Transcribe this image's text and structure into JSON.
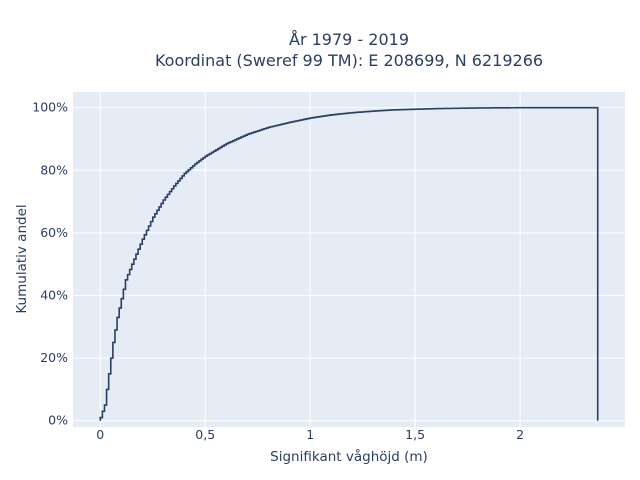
{
  "chart_data": {
    "type": "line",
    "subtype": "cumulative-step",
    "title_line1": "År 1979 - 2019",
    "title_line2": "Koordinat (Sweref 99 TM): E 208699, N 6219266",
    "xlabel": "Signifikant våghöjd (m)",
    "ylabel": "Kumulativ andel",
    "xlim": [
      -0.13,
      2.5
    ],
    "ylim": [
      -0.02,
      1.05
    ],
    "x_ticks": [
      0,
      0.5,
      1,
      1.5,
      2
    ],
    "x_tick_labels": [
      "0",
      "0,5",
      "1",
      "1,5",
      "2"
    ],
    "y_ticks": [
      0,
      0.2,
      0.4,
      0.6,
      0.8,
      1.0
    ],
    "y_tick_labels": [
      "0%",
      "20%",
      "40%",
      "60%",
      "80%",
      "100%"
    ],
    "grid": true,
    "background": "#e5ecf6",
    "line_color": "#2a3f5f",
    "x_max": 2.37,
    "x": [
      0.0,
      0.02,
      0.04,
      0.06,
      0.08,
      0.1,
      0.12,
      0.15,
      0.2,
      0.25,
      0.3,
      0.35,
      0.4,
      0.45,
      0.5,
      0.6,
      0.7,
      0.8,
      0.9,
      1.0,
      1.1,
      1.2,
      1.3,
      1.4,
      1.5,
      1.6,
      1.7,
      1.8,
      1.9,
      2.0,
      2.2,
      2.37
    ],
    "y": [
      0.01,
      0.05,
      0.15,
      0.25,
      0.33,
      0.39,
      0.45,
      0.5,
      0.58,
      0.65,
      0.705,
      0.75,
      0.79,
      0.82,
      0.845,
      0.885,
      0.915,
      0.937,
      0.953,
      0.967,
      0.977,
      0.984,
      0.989,
      0.993,
      0.995,
      0.997,
      0.998,
      0.999,
      0.9995,
      0.9998,
      1.0,
      1.0
    ]
  }
}
